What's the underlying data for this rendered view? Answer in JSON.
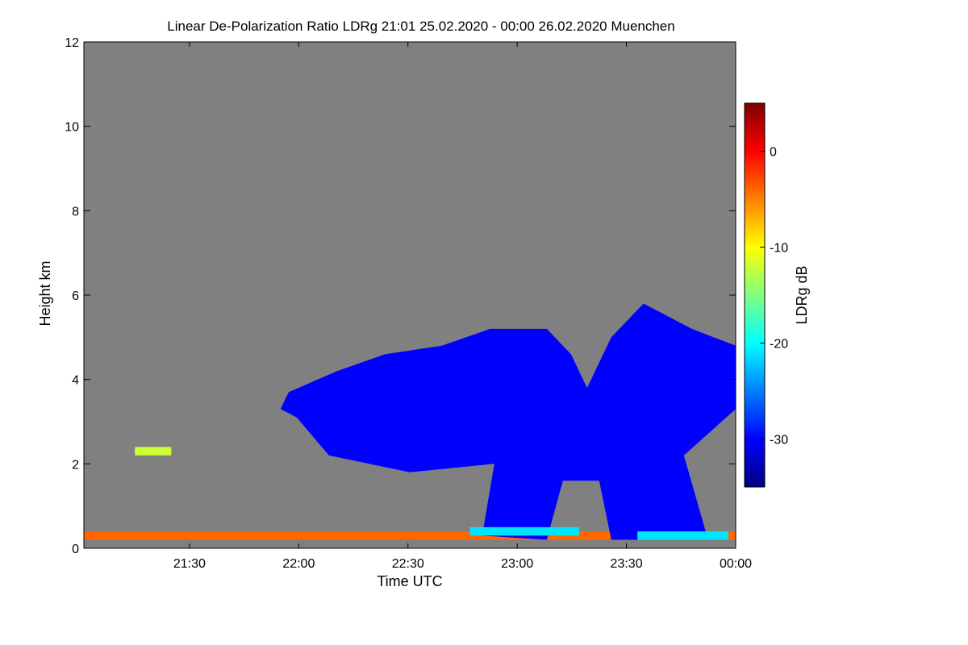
{
  "chart_data": {
    "type": "heatmap",
    "title": "Linear De-Polarization Ratio LDRg   21:01 25.02.2020 - 00:00 26.02.2020 Muenchen",
    "xlabel": "Time UTC",
    "ylabel": "Height km",
    "xlim": [
      "21:01",
      "00:00"
    ],
    "ylim": [
      0,
      12
    ],
    "x_ticks": [
      "21:30",
      "22:00",
      "22:30",
      "23:00",
      "23:30",
      "00:00"
    ],
    "y_ticks": [
      0,
      2,
      4,
      6,
      8,
      10,
      12
    ],
    "background_color": "#808080",
    "colorbar": {
      "label": "LDRg dB",
      "range": [
        -35,
        5
      ],
      "ticks": [
        0,
        -10,
        -20,
        -30
      ],
      "colormap": "jet"
    },
    "features": [
      {
        "region": "surface aerosol layer",
        "time": [
          "21:01",
          "00:00"
        ],
        "height_km": [
          0.2,
          0.4
        ],
        "ldr_db": -4
      },
      {
        "region": "thin layer",
        "time": [
          "21:15",
          "21:25"
        ],
        "height_km": [
          2.2,
          2.4
        ],
        "ldr_db": -12
      },
      {
        "region": "cloud",
        "time": [
          "21:55",
          "00:00"
        ],
        "height_km": [
          0.3,
          5.8
        ],
        "ldr_db": -30
      },
      {
        "region": "melting layer",
        "time": [
          "22:47",
          "23:17"
        ],
        "height_km": [
          0.3,
          0.5
        ],
        "ldr_db": -21
      },
      {
        "region": "melting layer",
        "time": [
          "23:33",
          "23:58"
        ],
        "height_km": [
          0.2,
          0.4
        ],
        "ldr_db": -21
      }
    ]
  }
}
